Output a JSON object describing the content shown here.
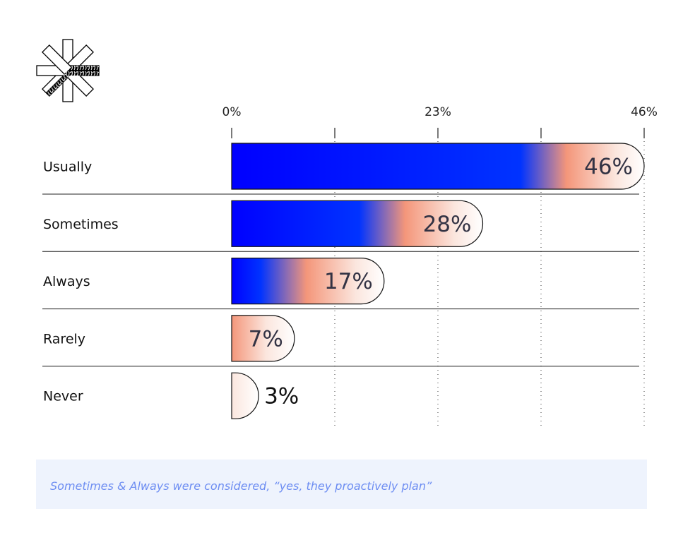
{
  "chart_data": {
    "type": "bar",
    "orientation": "horizontal",
    "categories": [
      "Usually",
      "Sometimes",
      "Always",
      "Rarely",
      "Never"
    ],
    "values": [
      46,
      28,
      17,
      7,
      3
    ],
    "value_labels": [
      "46%",
      "28%",
      "17%",
      "7%",
      "3%"
    ],
    "xlim": [
      0,
      46
    ],
    "x_ticks": [
      0,
      11.5,
      23,
      34.5,
      46
    ],
    "x_tick_labels": [
      {
        "value": 0,
        "label": "0%"
      },
      {
        "value": 23,
        "label": "23%"
      },
      {
        "value": 46,
        "label": "46%"
      }
    ],
    "grid": "vertical dotted",
    "title": "",
    "xlabel": "",
    "ylabel": "",
    "colors": {
      "start": "#0000ff",
      "mid": "#0033ff",
      "accent": "#f4967a",
      "end": "#ffffff"
    }
  },
  "logo": {
    "name": "asterisk-logo-icon"
  },
  "note": {
    "text": "Sometimes & Always were considered, “yes, they proactively plan”"
  }
}
